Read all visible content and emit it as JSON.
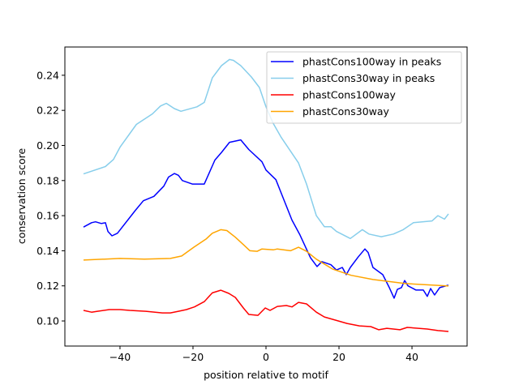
{
  "chart_data": {
    "type": "line",
    "title": "",
    "xlabel": "position relative to motif",
    "ylabel": "conservation score",
    "xlim": [
      -55.1,
      55.1
    ],
    "ylim": [
      0.0857,
      0.2561
    ],
    "xticks": [
      -40,
      -20,
      0,
      20,
      40
    ],
    "xtick_labels": [
      "−40",
      "−20",
      "0",
      "20",
      "40"
    ],
    "yticks": [
      0.1,
      0.12,
      0.14,
      0.16,
      0.18,
      0.2,
      0.22,
      0.24
    ],
    "ytick_labels": [
      "0.10",
      "0.12",
      "0.14",
      "0.16",
      "0.18",
      "0.20",
      "0.22",
      "0.24"
    ],
    "grid": false,
    "legend_position": "top-right",
    "series": [
      {
        "name": "phastCons100way in peaks",
        "color": "#0000ff",
        "x": [
          -50,
          -47.8,
          -46.7,
          -45.1,
          -44,
          -43.3,
          -42.2,
          -40.7,
          -35.8,
          -33.6,
          -30.7,
          -28,
          -26.7,
          -25.1,
          -24,
          -22.9,
          -20.2,
          -16.9,
          -14,
          -12.2,
          -10,
          -6.9,
          -4.7,
          -1.1,
          0,
          2.7,
          4.9,
          7.1,
          9.3,
          12.2,
          14,
          15.3,
          17.8,
          19.3,
          20.9,
          22,
          23.1,
          25.3,
          27.1,
          28,
          29.3,
          32,
          33.8,
          35.1,
          36,
          37.1,
          38,
          38.9,
          41.1,
          43.1,
          44.2,
          45.1,
          46.2,
          47.6,
          50
        ],
        "y": [
          0.1535,
          0.156,
          0.1565,
          0.1555,
          0.156,
          0.151,
          0.1485,
          0.15,
          0.163,
          0.1685,
          0.171,
          0.1768,
          0.182,
          0.184,
          0.183,
          0.18,
          0.178,
          0.178,
          0.1917,
          0.196,
          0.2018,
          0.2032,
          0.1977,
          0.1907,
          0.186,
          0.1805,
          0.169,
          0.1575,
          0.149,
          0.136,
          0.131,
          0.1338,
          0.132,
          0.129,
          0.1305,
          0.1264,
          0.1305,
          0.1366,
          0.141,
          0.139,
          0.1305,
          0.1264,
          0.119,
          0.113,
          0.118,
          0.119,
          0.123,
          0.12,
          0.1176,
          0.1176,
          0.114,
          0.1185,
          0.1148,
          0.119,
          0.1204
        ]
      },
      {
        "name": "phastCons30way in peaks",
        "color": "#87ceeb",
        "x": [
          -50,
          -44,
          -41.8,
          -40,
          -35.5,
          -33.3,
          -31.1,
          -28.9,
          -27.3,
          -25.1,
          -23.3,
          -18.9,
          -16.9,
          -16.2,
          -14.7,
          -12.2,
          -10,
          -8.9,
          -6.9,
          -4,
          -1.8,
          0,
          2,
          4.2,
          8.9,
          11.1,
          13.8,
          16,
          17.8,
          19.3,
          23.1,
          26.4,
          28.2,
          31.6,
          34.9,
          37.6,
          40.4,
          45.5,
          47.1,
          48.9,
          50
        ],
        "y": [
          0.1838,
          0.188,
          0.192,
          0.199,
          0.212,
          0.215,
          0.218,
          0.2225,
          0.224,
          0.221,
          0.2195,
          0.222,
          0.2245,
          0.229,
          0.2385,
          0.2455,
          0.249,
          0.2485,
          0.2455,
          0.239,
          0.233,
          0.222,
          0.2125,
          0.2045,
          0.19,
          0.178,
          0.16,
          0.1537,
          0.1537,
          0.151,
          0.147,
          0.152,
          0.1495,
          0.148,
          0.1495,
          0.152,
          0.156,
          0.157,
          0.16,
          0.158,
          0.161
        ]
      },
      {
        "name": "phastCons100way",
        "color": "#ff0000",
        "x": [
          -50,
          -47.8,
          -46.2,
          -42.9,
          -40,
          -37.3,
          -32.9,
          -28.4,
          -26.2,
          -24,
          -21.8,
          -19.6,
          -16.9,
          -14.7,
          -12.4,
          -10.2,
          -8.4,
          -6.2,
          -4.7,
          -2.2,
          -0.2,
          1.1,
          3.1,
          5.6,
          7.1,
          8.9,
          11.1,
          13.8,
          16,
          19.8,
          22.2,
          25.6,
          28.7,
          30.9,
          33.1,
          36.7,
          38.7,
          44.2,
          47.1,
          50
        ],
        "y": [
          0.106,
          0.105,
          0.1055,
          0.1065,
          0.1065,
          0.106,
          0.1055,
          0.1046,
          0.1046,
          0.1055,
          0.1065,
          0.108,
          0.111,
          0.116,
          0.1175,
          0.1157,
          0.1134,
          0.1074,
          0.1037,
          0.1032,
          0.1074,
          0.106,
          0.1083,
          0.1088,
          0.108,
          0.1106,
          0.1097,
          0.105,
          0.1023,
          0.1,
          0.0986,
          0.0972,
          0.0968,
          0.095,
          0.0958,
          0.095,
          0.0963,
          0.0954,
          0.0945,
          0.094
        ]
      },
      {
        "name": "phastCons30way",
        "color": "#ffa500",
        "x": [
          -50,
          -40,
          -33.3,
          -26.2,
          -23.1,
          -19.8,
          -16.4,
          -14.7,
          -12.4,
          -10.7,
          -8.4,
          -6.2,
          -4.4,
          -2.4,
          -1.1,
          2,
          3.1,
          6.7,
          8.9,
          11.1,
          13.8,
          18.2,
          23.3,
          29.3,
          38.2,
          50
        ],
        "y": [
          0.1347,
          0.1356,
          0.1352,
          0.1356,
          0.137,
          0.142,
          0.1467,
          0.15,
          0.152,
          0.1515,
          0.1477,
          0.1435,
          0.14,
          0.1397,
          0.141,
          0.1405,
          0.141,
          0.14,
          0.142,
          0.1397,
          0.1352,
          0.1296,
          0.126,
          0.1236,
          0.1213,
          0.1199
        ]
      }
    ]
  }
}
